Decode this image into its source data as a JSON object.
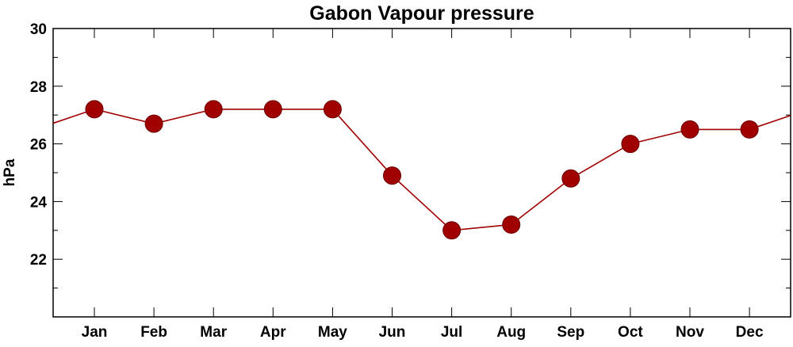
{
  "chart_data": {
    "type": "line",
    "title": "Gabon Vapour pressure",
    "xlabel": "",
    "ylabel": "hPa",
    "categories": [
      "Jan",
      "Feb",
      "Mar",
      "Apr",
      "May",
      "Jun",
      "Jul",
      "Aug",
      "Sep",
      "Oct",
      "Nov",
      "Dec"
    ],
    "series": [
      {
        "values": [
          27.2,
          26.7,
          27.2,
          27.2,
          27.2,
          24.9,
          23.0,
          23.2,
          24.8,
          26.0,
          26.5,
          26.5
        ]
      }
    ],
    "ylim": [
      20,
      30
    ],
    "yticks": [
      "22",
      "24",
      "26",
      "28",
      "30"
    ],
    "grid": false,
    "legend": "none",
    "colors": {
      "series": "#a00000",
      "axis": "#000000",
      "background": "#ffffff"
    }
  }
}
